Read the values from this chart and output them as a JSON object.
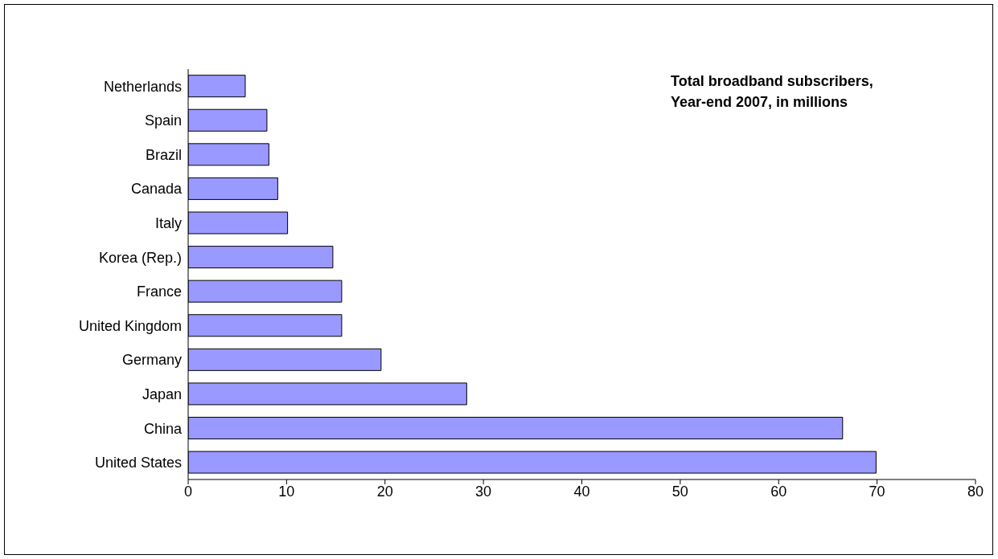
{
  "chart_data": {
    "type": "bar",
    "orientation": "horizontal",
    "title": "Total broadband subscribers,\nYear-end 2007, in millions",
    "categories": [
      "Netherlands",
      "Spain",
      "Brazil",
      "Canada",
      "Italy",
      "Korea (Rep.)",
      "France",
      "United Kingdom",
      "Germany",
      "Japan",
      "China",
      "United States"
    ],
    "values": [
      5.8,
      8.0,
      8.2,
      9.1,
      10.1,
      14.7,
      15.6,
      15.6,
      19.6,
      28.3,
      66.5,
      69.9
    ],
    "color": "#9999ff",
    "xlim": [
      0,
      80
    ],
    "xticks": [
      0,
      10,
      20,
      30,
      40,
      50,
      60,
      70,
      80
    ],
    "grid": false,
    "legend": false
  }
}
